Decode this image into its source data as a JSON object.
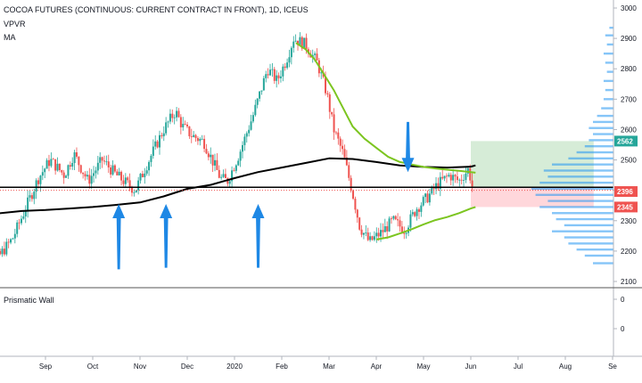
{
  "header": {
    "symbol_title": "COCOA FUTURES (CONTINUOUS: CURRENT CONTRACT IN FRONT), 1D, ICEUS",
    "indicator_1": "VPVR",
    "indicator_2": "MA"
  },
  "lower_pane": {
    "title": "Prismatic Wall",
    "ticks": [
      "0",
      "0"
    ]
  },
  "colors": {
    "up_candle": "#26a69a",
    "down_candle": "#ef5350",
    "ma_long": "#000000",
    "ma_short": "#7cc520",
    "arrow": "#1e88e5",
    "vpvr": "#2196f3",
    "target_zone": "#c8e6c9",
    "stop_zone": "#ffcdd2",
    "label_green": "#26a69a",
    "label_red": "#ef5350"
  },
  "chart_data": {
    "type": "candlestick",
    "title": "COCOA FUTURES (CONTINUOUS: CURRENT CONTRACT IN FRONT), 1D, ICEUS",
    "ylim": [
      2100,
      3000
    ],
    "y_ticks": [
      3000,
      2900,
      2800,
      2700,
      2600,
      2500,
      2400,
      2300,
      2200,
      2100
    ],
    "x_ticks": [
      "Sep",
      "Oct",
      "Nov",
      "Dec",
      "2020",
      "Feb",
      "Mar",
      "Apr",
      "May",
      "Jun",
      "Jul",
      "Aug",
      "Se"
    ],
    "price_path": [
      {
        "m": 7.5,
        "p": 2270
      },
      {
        "m": 7.8,
        "p": 2210
      },
      {
        "m": 8.0,
        "p": 2180
      },
      {
        "m": 8.3,
        "p": 2240
      },
      {
        "m": 8.55,
        "p": 2330
      },
      {
        "m": 8.85,
        "p": 2440
      },
      {
        "m": 9.1,
        "p": 2500
      },
      {
        "m": 9.4,
        "p": 2450
      },
      {
        "m": 9.6,
        "p": 2520
      },
      {
        "m": 9.9,
        "p": 2430
      },
      {
        "m": 10.2,
        "p": 2500
      },
      {
        "m": 10.5,
        "p": 2450
      },
      {
        "m": 10.9,
        "p": 2400
      },
      {
        "m": 11.1,
        "p": 2470
      },
      {
        "m": 11.5,
        "p": 2600
      },
      {
        "m": 11.75,
        "p": 2660
      },
      {
        "m": 11.9,
        "p": 2610
      },
      {
        "m": 12.1,
        "p": 2580
      },
      {
        "m": 12.35,
        "p": 2560
      },
      {
        "m": 12.7,
        "p": 2440
      },
      {
        "m": 12.85,
        "p": 2430
      },
      {
        "m": 13.1,
        "p": 2520
      },
      {
        "m": 13.4,
        "p": 2650
      },
      {
        "m": 13.7,
        "p": 2800
      },
      {
        "m": 13.9,
        "p": 2760
      },
      {
        "m": 14.1,
        "p": 2830
      },
      {
        "m": 14.25,
        "p": 2900
      },
      {
        "m": 14.5,
        "p": 2880
      },
      {
        "m": 14.75,
        "p": 2820
      },
      {
        "m": 14.95,
        "p": 2720
      },
      {
        "m": 15.1,
        "p": 2600
      },
      {
        "m": 15.3,
        "p": 2520
      },
      {
        "m": 15.5,
        "p": 2390
      },
      {
        "m": 15.65,
        "p": 2280
      },
      {
        "m": 15.85,
        "p": 2230
      },
      {
        "m": 16.1,
        "p": 2260
      },
      {
        "m": 16.35,
        "p": 2300
      },
      {
        "m": 16.6,
        "p": 2270
      },
      {
        "m": 16.85,
        "p": 2340
      },
      {
        "m": 17.1,
        "p": 2380
      },
      {
        "m": 17.3,
        "p": 2420
      },
      {
        "m": 17.55,
        "p": 2450
      },
      {
        "m": 17.75,
        "p": 2430
      },
      {
        "m": 17.95,
        "p": 2470
      },
      {
        "m": 18.05,
        "p": 2400
      }
    ],
    "ma_long": [
      {
        "m": 7.0,
        "p": 2324
      },
      {
        "m": 7.5,
        "p": 2322
      },
      {
        "m": 8.0,
        "p": 2324
      },
      {
        "m": 8.5,
        "p": 2332
      },
      {
        "m": 9.0,
        "p": 2335
      },
      {
        "m": 9.5,
        "p": 2340
      },
      {
        "m": 10.0,
        "p": 2345
      },
      {
        "m": 10.5,
        "p": 2352
      },
      {
        "m": 11.0,
        "p": 2360
      },
      {
        "m": 11.5,
        "p": 2380
      },
      {
        "m": 12.0,
        "p": 2405
      },
      {
        "m": 12.5,
        "p": 2418
      },
      {
        "m": 13.0,
        "p": 2440
      },
      {
        "m": 13.5,
        "p": 2460
      },
      {
        "m": 14.0,
        "p": 2475
      },
      {
        "m": 14.5,
        "p": 2490
      },
      {
        "m": 15.0,
        "p": 2505
      },
      {
        "m": 15.5,
        "p": 2503
      },
      {
        "m": 16.0,
        "p": 2493
      },
      {
        "m": 16.5,
        "p": 2482
      },
      {
        "m": 17.0,
        "p": 2477
      },
      {
        "m": 17.5,
        "p": 2475
      },
      {
        "m": 18.0,
        "p": 2478
      },
      {
        "m": 18.1,
        "p": 2482
      }
    ],
    "ma_short": [
      {
        "m": 14.3,
        "p": 2885
      },
      {
        "m": 14.5,
        "p": 2865
      },
      {
        "m": 14.7,
        "p": 2830
      },
      {
        "m": 14.9,
        "p": 2780
      },
      {
        "m": 15.1,
        "p": 2730
      },
      {
        "m": 15.3,
        "p": 2670
      },
      {
        "m": 15.5,
        "p": 2610
      },
      {
        "m": 15.75,
        "p": 2570
      },
      {
        "m": 16.0,
        "p": 2540
      },
      {
        "m": 16.25,
        "p": 2510
      },
      {
        "m": 16.5,
        "p": 2493
      },
      {
        "m": 16.75,
        "p": 2485
      },
      {
        "m": 17.0,
        "p": 2477
      },
      {
        "m": 17.25,
        "p": 2472
      },
      {
        "m": 17.5,
        "p": 2468
      },
      {
        "m": 17.75,
        "p": 2464
      },
      {
        "m": 18.0,
        "p": 2460
      },
      {
        "m": 18.1,
        "p": 2458
      }
    ],
    "ma_short_lower": [
      {
        "m": 16.0,
        "p": 2238
      },
      {
        "m": 16.25,
        "p": 2245
      },
      {
        "m": 16.5,
        "p": 2258
      },
      {
        "m": 16.75,
        "p": 2272
      },
      {
        "m": 17.0,
        "p": 2288
      },
      {
        "m": 17.25,
        "p": 2302
      },
      {
        "m": 17.5,
        "p": 2312
      },
      {
        "m": 17.75,
        "p": 2325
      },
      {
        "m": 18.0,
        "p": 2340
      },
      {
        "m": 18.1,
        "p": 2345
      }
    ],
    "horizontal_line": {
      "price": 2410
    },
    "current_price_dotted": {
      "price": 2400
    },
    "target_zone": {
      "from_m": 18.0,
      "to_m": 20.6,
      "low": 2410,
      "high": 2562
    },
    "stop_zone": {
      "from_m": 18.0,
      "to_m": 20.6,
      "low": 2345,
      "high": 2410
    },
    "price_labels": [
      {
        "text": "2562",
        "price": 2562,
        "color": "green"
      },
      {
        "text": "2396",
        "price": 2396,
        "color": "red"
      },
      {
        "text": "2345",
        "price": 2345,
        "color": "red"
      }
    ],
    "arrows": [
      {
        "m": 10.55,
        "direction": "up",
        "tip": 2355,
        "tail": 2140
      },
      {
        "m": 11.55,
        "direction": "up",
        "tip": 2355,
        "tail": 2145
      },
      {
        "m": 13.5,
        "direction": "up",
        "tip": 2355,
        "tail": 2145
      },
      {
        "m": 16.67,
        "direction": "down",
        "tip": 2460,
        "tail": 2625
      }
    ],
    "vpvr_profile": [
      {
        "p": 2160,
        "v": 0.25
      },
      {
        "p": 2185,
        "v": 0.35
      },
      {
        "p": 2205,
        "v": 0.45
      },
      {
        "p": 2225,
        "v": 0.55
      },
      {
        "p": 2245,
        "v": 0.6
      },
      {
        "p": 2265,
        "v": 0.75
      },
      {
        "p": 2285,
        "v": 0.6
      },
      {
        "p": 2305,
        "v": 0.7
      },
      {
        "p": 2325,
        "v": 0.75
      },
      {
        "p": 2345,
        "v": 0.9
      },
      {
        "p": 2365,
        "v": 0.8
      },
      {
        "p": 2385,
        "v": 0.95
      },
      {
        "p": 2405,
        "v": 1.0
      },
      {
        "p": 2425,
        "v": 0.9
      },
      {
        "p": 2445,
        "v": 0.8
      },
      {
        "p": 2465,
        "v": 0.85
      },
      {
        "p": 2485,
        "v": 0.75
      },
      {
        "p": 2505,
        "v": 0.55
      },
      {
        "p": 2525,
        "v": 0.45
      },
      {
        "p": 2545,
        "v": 0.35
      },
      {
        "p": 2565,
        "v": 0.3
      },
      {
        "p": 2585,
        "v": 0.25
      },
      {
        "p": 2605,
        "v": 0.3
      },
      {
        "p": 2625,
        "v": 0.25
      },
      {
        "p": 2645,
        "v": 0.2
      },
      {
        "p": 2670,
        "v": 0.15
      },
      {
        "p": 2700,
        "v": 0.12
      },
      {
        "p": 2730,
        "v": 0.1
      },
      {
        "p": 2760,
        "v": 0.12
      },
      {
        "p": 2790,
        "v": 0.08
      },
      {
        "p": 2820,
        "v": 0.1
      },
      {
        "p": 2850,
        "v": 0.12
      },
      {
        "p": 2880,
        "v": 0.08
      },
      {
        "p": 2910,
        "v": 0.1
      },
      {
        "p": 2935,
        "v": 0.05
      }
    ]
  }
}
